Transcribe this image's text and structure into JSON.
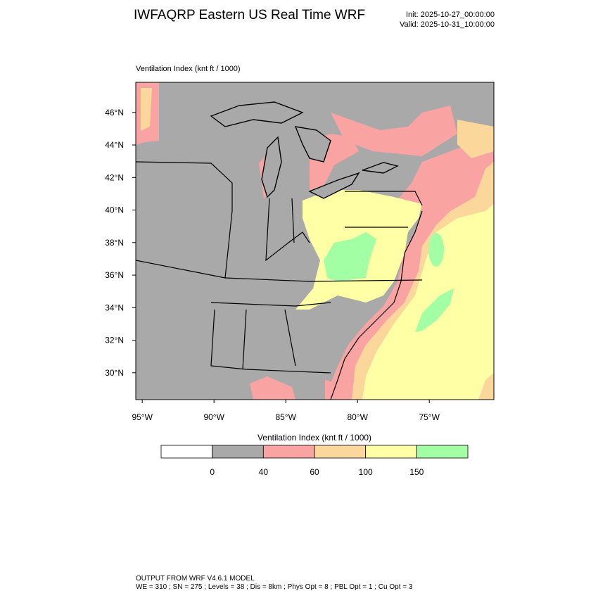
{
  "map": {
    "title": "IWFAQRP Eastern US Real Time WRF",
    "init": "Init: 2025-10-27_00:00:00",
    "valid": "Valid: 2025-10-31_10:00:00",
    "plot_label": "Ventilation Index   (knt ft / 1000)",
    "xlim": [
      -95.45,
      -70.5
    ],
    "ylim": [
      28.35,
      47.85
    ],
    "xticks": [
      {
        "value": -95,
        "label": "95°W"
      },
      {
        "value": -90,
        "label": "90°W"
      },
      {
        "value": -85,
        "label": "85°W"
      },
      {
        "value": -80,
        "label": "80°W"
      },
      {
        "value": -75,
        "label": "75°W"
      }
    ],
    "yticks": [
      {
        "value": 30,
        "label": "30°N"
      },
      {
        "value": 32,
        "label": "32°N"
      },
      {
        "value": 34,
        "label": "34°N"
      },
      {
        "value": 36,
        "label": "36°N"
      },
      {
        "value": 38,
        "label": "38°N"
      },
      {
        "value": 40,
        "label": "40°N"
      },
      {
        "value": 42,
        "label": "42°N"
      },
      {
        "value": 44,
        "label": "44°N"
      },
      {
        "value": 46,
        "label": "46°N"
      }
    ],
    "colorbar": {
      "title": "Ventilation Index  (knt ft / 1000)",
      "levels": [
        0,
        40,
        60,
        100,
        150
      ],
      "colors": [
        "#ffffff",
        "#a9a9a9",
        "#f9a3a3",
        "#fcd79c",
        "#ffffa6",
        "#a3ffa3"
      ]
    },
    "footer": [
      "OUTPUT FROM WRF V4.6.1 MODEL",
      "WE = 310 ; SN = 275 ; Levels = 38 ; Dis = 8km ; Phys Opt = 8 ; PBL Opt = 1 ; Cu Opt = 3"
    ]
  }
}
